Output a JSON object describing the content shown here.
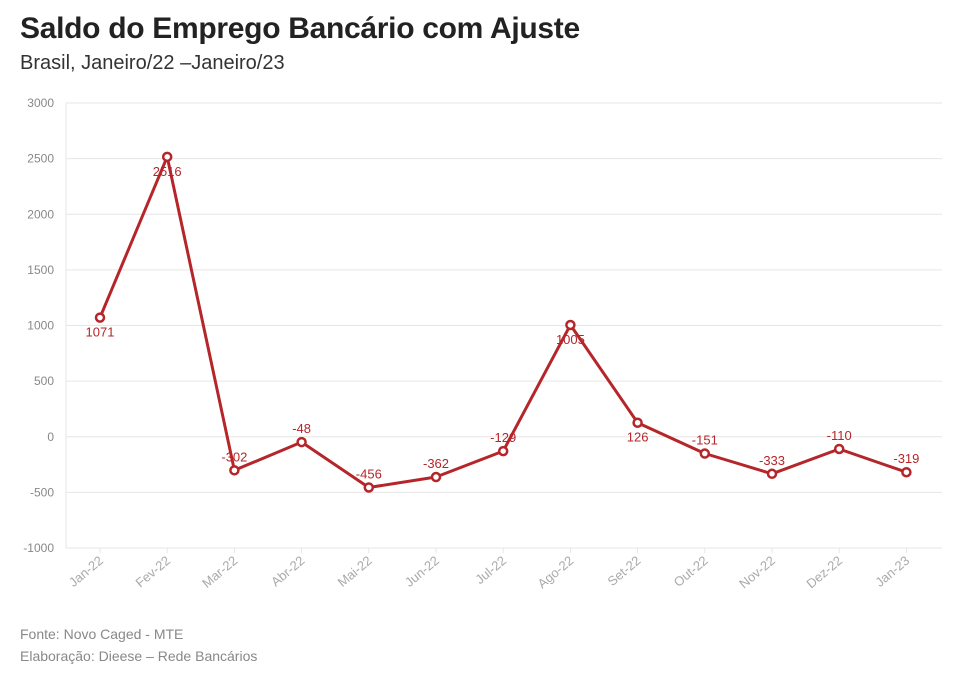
{
  "header": {
    "title": "Saldo do Emprego Bancário com Ajuste",
    "subtitle": "Brasil, Janeiro/22 –Janeiro/23"
  },
  "footer": {
    "source": "Fonte: Novo Caged - MTE",
    "credit": "Elaboração: Dieese – Rede Bancários"
  },
  "colors": {
    "line": "#b5262a",
    "label": "#b5262a",
    "grid": "#e6e6e6",
    "axis_text": "#888888",
    "tick_text": "#aaaaaa"
  },
  "chart_data": {
    "type": "line",
    "title": "Saldo do Emprego Bancário com Ajuste",
    "subtitle": "Brasil, Janeiro/22 –Janeiro/23",
    "xlabel": "",
    "ylabel": "",
    "categories": [
      "Jan-22",
      "Fev-22",
      "Mar-22",
      "Abr-22",
      "Mai-22",
      "Jun-22",
      "Jul-22",
      "Ago-22",
      "Set-22",
      "Out-22",
      "Nov-22",
      "Dez-22",
      "Jan-23"
    ],
    "series": [
      {
        "values": [
          1071,
          2516,
          -302,
          -48,
          -456,
          -362,
          -129,
          1005,
          126,
          -151,
          -333,
          -110,
          -319
        ]
      }
    ],
    "label_position": [
      "below",
      "below",
      "above",
      "above",
      "above",
      "above",
      "above",
      "below",
      "below",
      "above",
      "above",
      "above",
      "above"
    ],
    "ylim": [
      -1000,
      3000
    ],
    "yticks": [
      3000,
      2500,
      2000,
      1500,
      1000,
      500,
      0,
      -500,
      -1000
    ],
    "grid": true,
    "legend": "none"
  }
}
